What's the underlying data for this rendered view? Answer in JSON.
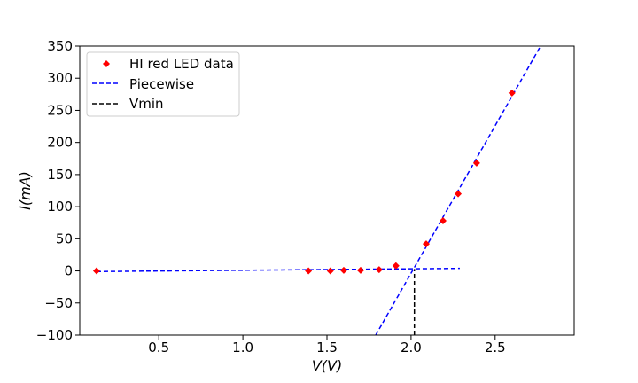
{
  "chart_data": {
    "type": "scatter",
    "xlabel": "V(V)",
    "ylabel": "I(mA)",
    "xlim": [
      0.03,
      2.97
    ],
    "ylim": [
      -100,
      350
    ],
    "xticks": [
      0.5,
      1.0,
      1.5,
      2.0,
      2.5
    ],
    "xtick_labels": [
      "0.5",
      "1.0",
      "1.5",
      "2.0",
      "2.5"
    ],
    "yticks": [
      -100,
      -50,
      0,
      50,
      100,
      150,
      200,
      250,
      300,
      350
    ],
    "ytick_labels": [
      "−100",
      "−50",
      "0",
      "50",
      "100",
      "150",
      "200",
      "250",
      "300",
      "350"
    ],
    "grid": false,
    "legend_position": "top-left",
    "series": [
      {
        "name": "HI red LED data",
        "kind": "scatter",
        "marker": "diamond",
        "color": "#ff0000",
        "x": [
          0.13,
          1.39,
          1.52,
          1.6,
          1.7,
          1.81,
          1.91,
          2.09,
          2.19,
          2.28,
          2.39,
          2.6
        ],
        "y": [
          0,
          0,
          0,
          1,
          1,
          2,
          8,
          42,
          78,
          120,
          168,
          277
        ]
      },
      {
        "name": "Piecewise",
        "kind": "line",
        "style": "dashed",
        "color": "#0000ff",
        "segments": [
          {
            "x": [
              0.13,
              2.29
            ],
            "y": [
              -1,
              4
            ]
          },
          {
            "x": [
              1.79,
              2.77
            ],
            "y": [
              -100,
              350
            ]
          }
        ]
      },
      {
        "name": "Vmin",
        "kind": "line",
        "style": "dashed",
        "color": "#000000",
        "segments": [
          {
            "x": [
              2.02,
              2.02
            ],
            "y": [
              -100,
              3
            ]
          }
        ]
      }
    ]
  }
}
